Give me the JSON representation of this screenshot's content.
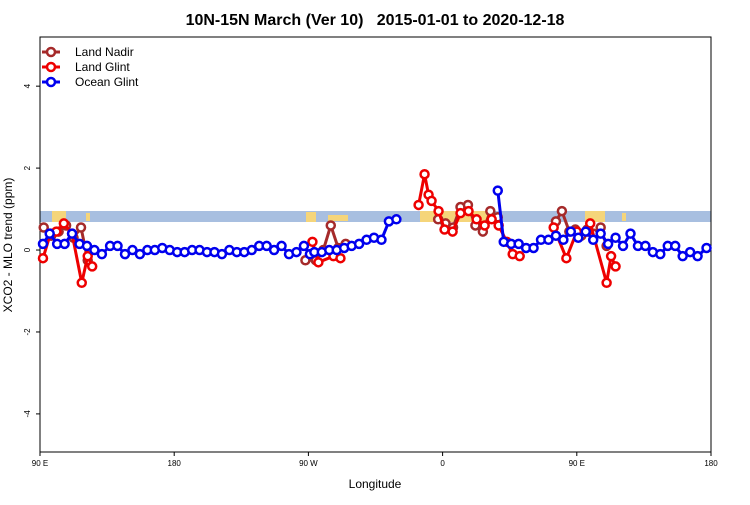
{
  "chart_data": {
    "type": "line",
    "title": "10N-15N March (Ver 10)   2015-01-01 to 2020-12-18",
    "x_label": "Longitude",
    "y_label": "XCO2 - MLO trend (ppm)",
    "xlim": [
      90,
      540
    ],
    "ylim": [
      -4.93,
      5.2
    ],
    "xticks": [
      {
        "value": 90,
        "label": "90 E"
      },
      180,
      {
        "value": 270,
        "label": "90 W"
      },
      {
        "value": 360,
        "label": "0"
      },
      {
        "value": 450,
        "label": "90 E"
      },
      {
        "value": 540,
        "label": "180"
      }
    ],
    "yticks": [
      -4,
      -2,
      0,
      2,
      4
    ],
    "legend": "top-left",
    "series": [
      {
        "name": "Land Nadir",
        "color": "#a52a2a",
        "x": [
          92.5,
          97.5,
          102.5,
          107.5,
          112.5,
          117.5,
          122,
          200,
          268,
          275,
          280,
          285,
          290,
          295,
          330,
          357,
          362,
          367,
          372,
          377,
          382,
          387,
          392,
          397,
          420,
          436,
          440,
          445,
          449,
          453,
          457,
          461,
          466,
          470
        ],
        "values": [
          0.55,
          0.35,
          0.45,
          0.6,
          0.3,
          0.55,
          -0.25,
          null,
          -0.25,
          -0.25,
          0,
          0.6,
          0.05,
          0.15,
          null,
          0.75,
          0.65,
          0.55,
          1.05,
          1.1,
          0.6,
          0.45,
          0.95,
          0.8,
          null,
          0.7,
          0.95,
          0.45,
          0.5,
          0.35,
          0.5,
          0.4,
          0.55,
          0.1
        ]
      },
      {
        "name": "Land Glint",
        "color": "#ee0000",
        "x": [
          92,
          97,
          101,
          106,
          111.5,
          118,
          122,
          125,
          200,
          272.7,
          276.7,
          286.8,
          291.5,
          320,
          343.9,
          347.9,
          350.6,
          352.6,
          357.3,
          361.3,
          366.7,
          372,
          377.4,
          382.8,
          388.2,
          392.9,
          397.6,
          403,
          407,
          411.7,
          420,
          434.5,
          443,
          450,
          457,
          459,
          470,
          473,
          476
        ],
        "values": [
          -0.2,
          0.4,
          0.45,
          0.65,
          0.4,
          -0.8,
          -0.15,
          -0.4,
          null,
          0.2,
          -0.3,
          -0.15,
          -0.2,
          null,
          1.1,
          1.85,
          1.35,
          1.2,
          0.95,
          0.5,
          0.45,
          0.9,
          0.95,
          0.75,
          0.6,
          0.75,
          0.6,
          0.2,
          -0.1,
          -0.15,
          null,
          0.55,
          -0.2,
          0.45,
          0.45,
          0.65,
          -0.8,
          -0.15,
          -0.4
        ]
      },
      {
        "name": "Ocean Glint",
        "color": "#0000ee",
        "x": [
          92,
          96.5,
          101.5,
          106.5,
          111.5,
          116.5,
          121.5,
          126.5,
          131.5,
          137,
          142,
          147,
          152,
          157,
          162,
          167,
          172,
          177,
          182,
          187,
          192,
          197,
          202,
          207,
          212,
          217,
          222,
          227,
          232,
          237,
          242,
          247,
          252,
          257,
          262,
          267,
          271,
          274,
          279,
          284,
          289,
          294,
          299,
          304,
          309,
          314,
          319,
          324,
          329,
          334,
          338.5,
          343,
          370,
          397,
          401,
          406,
          411,
          416,
          421,
          426,
          431,
          436,
          441,
          446,
          451,
          456,
          461,
          466,
          471,
          476,
          481,
          486,
          491,
          496,
          501,
          506,
          511,
          516,
          521,
          526,
          531,
          537
        ],
        "values": [
          0.15,
          0.4,
          0.15,
          0.15,
          0.4,
          0.15,
          0.1,
          0,
          -0.1,
          0.1,
          0.1,
          -0.1,
          0,
          -0.1,
          0,
          0,
          0.05,
          0,
          -0.05,
          -0.05,
          0,
          0,
          -0.05,
          -0.05,
          -0.1,
          0,
          -0.05,
          -0.05,
          0,
          0.1,
          0.1,
          0,
          0.1,
          -0.1,
          -0.05,
          0.1,
          -0.1,
          -0.05,
          -0.05,
          0,
          0,
          0.05,
          0.1,
          0.15,
          0.25,
          0.3,
          0.25,
          0.7,
          0.75,
          null,
          null,
          null,
          null,
          1.45,
          0.2,
          0.15,
          0.15,
          0.05,
          0.05,
          0.25,
          0.25,
          0.35,
          0.25,
          0.45,
          0.3,
          0.45,
          0.25,
          0.4,
          0.15,
          0.3,
          0.1,
          0.4,
          0.1,
          0.1,
          -0.05,
          -0.1,
          0.1,
          0.1,
          -0.15,
          -0.05,
          -0.15,
          0.05
        ]
      }
    ]
  }
}
